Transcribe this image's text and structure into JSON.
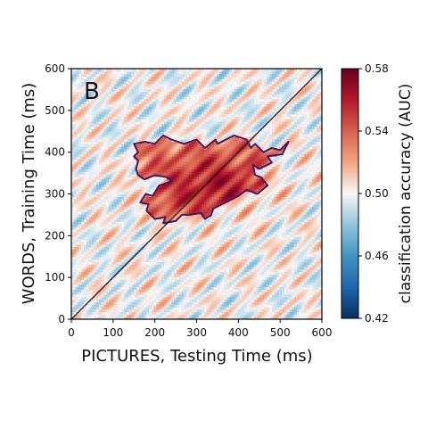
{
  "chart_data": {
    "type": "heatmap",
    "panel_label": "B",
    "xlabel": "PICTURES, Testing Time (ms)",
    "ylabel": "WORDS, Training Time (ms)",
    "xlim": [
      0,
      600
    ],
    "ylim": [
      0,
      600
    ],
    "xticks": [
      "0",
      "100",
      "200",
      "300",
      "400",
      "500",
      "600"
    ],
    "yticks": [
      "0",
      "100",
      "200",
      "300",
      "400",
      "500",
      "600"
    ],
    "colorbar": {
      "label": "classification accuracy (AUC)",
      "range": [
        0.42,
        0.58
      ],
      "ticks": [
        "0.42",
        "0.46",
        "0.50",
        "0.54",
        "0.58"
      ],
      "colormap": "RdBu_r"
    },
    "diagonal_line": true,
    "peak_accuracy": 0.56,
    "peak_location": {
      "test_ms": 340,
      "train_ms": 320
    },
    "significant_cluster_outline": [
      [
        160,
        345
      ],
      [
        155,
        360
      ],
      [
        160,
        380
      ],
      [
        150,
        390
      ],
      [
        160,
        400
      ],
      [
        150,
        420
      ],
      [
        175,
        425
      ],
      [
        200,
        420
      ],
      [
        220,
        440
      ],
      [
        240,
        430
      ],
      [
        270,
        420
      ],
      [
        300,
        430
      ],
      [
        320,
        410
      ],
      [
        345,
        430
      ],
      [
        350,
        420
      ],
      [
        390,
        440
      ],
      [
        420,
        430
      ],
      [
        430,
        410
      ],
      [
        440,
        420
      ],
      [
        460,
        400
      ],
      [
        480,
        410
      ],
      [
        500,
        405
      ],
      [
        520,
        425
      ],
      [
        505,
        395
      ],
      [
        470,
        390
      ],
      [
        480,
        375
      ],
      [
        450,
        360
      ],
      [
        435,
        370
      ],
      [
        440,
        345
      ],
      [
        455,
        340
      ],
      [
        470,
        320
      ],
      [
        445,
        300
      ],
      [
        420,
        310
      ],
      [
        400,
        295
      ],
      [
        370,
        280
      ],
      [
        340,
        265
      ],
      [
        335,
        250
      ],
      [
        320,
        240
      ],
      [
        310,
        255
      ],
      [
        285,
        250
      ],
      [
        265,
        250
      ],
      [
        250,
        235
      ],
      [
        220,
        230
      ],
      [
        225,
        245
      ],
      [
        200,
        240
      ],
      [
        180,
        260
      ],
      [
        185,
        275
      ],
      [
        165,
        280
      ],
      [
        178,
        300
      ],
      [
        195,
        295
      ],
      [
        210,
        320
      ],
      [
        240,
        330
      ],
      [
        230,
        340
      ],
      [
        200,
        345
      ],
      [
        175,
        335
      ]
    ]
  },
  "colors": {
    "outline": "#4a1560",
    "diagonal": "#000000",
    "frame": "#000000"
  }
}
